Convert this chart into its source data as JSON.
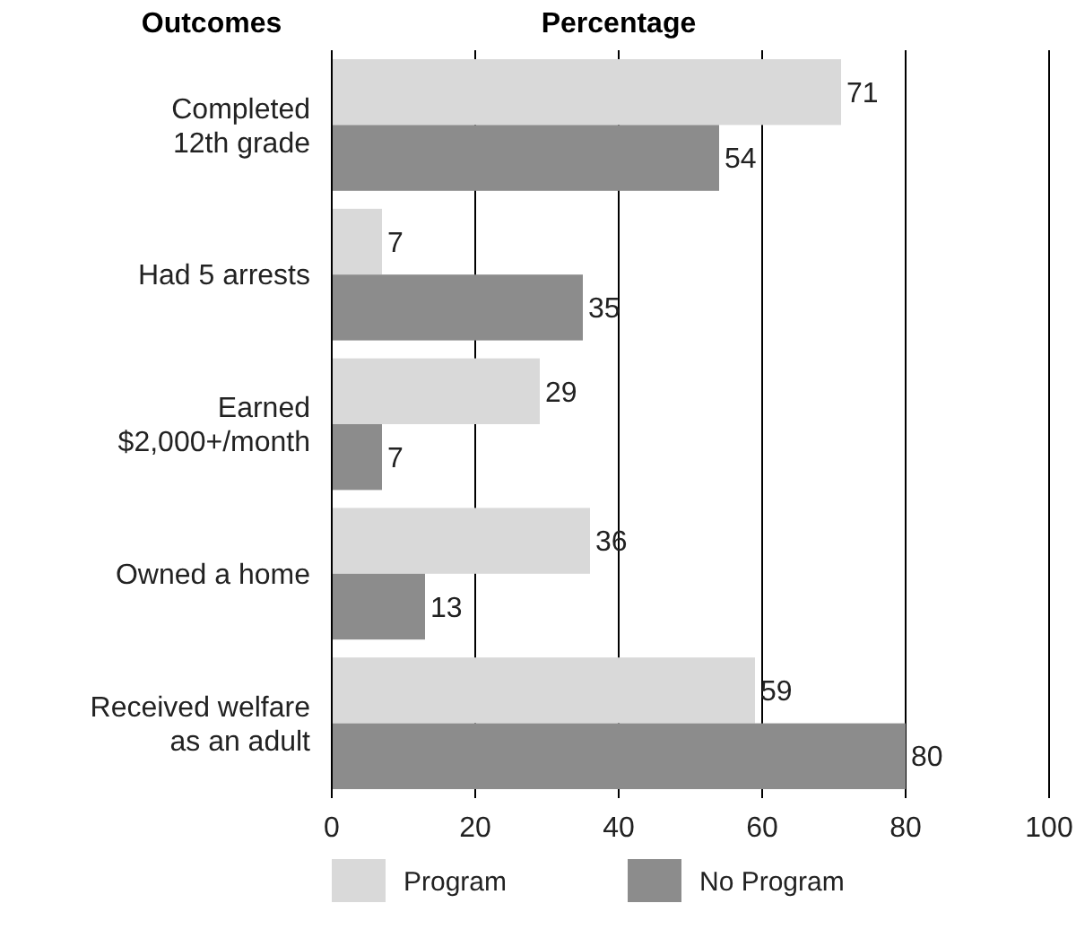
{
  "chart_data": {
    "type": "bar",
    "orientation": "horizontal",
    "ylabel": "Outcomes",
    "xlabel": "Percentage",
    "categories": [
      "Completed\n12th grade",
      "Had 5 arrests",
      "Earned\n$2,000+/month",
      "Owned a home",
      "Received welfare\nas an adult"
    ],
    "series": [
      {
        "name": "Program",
        "color": "#d9d9d9",
        "values": [
          71,
          7,
          29,
          36,
          59
        ]
      },
      {
        "name": "No Program",
        "color": "#8c8c8c",
        "values": [
          54,
          35,
          7,
          13,
          80
        ]
      }
    ],
    "xlim": [
      0,
      100
    ],
    "xticks": [
      0,
      20,
      40,
      60,
      80,
      100
    ],
    "grid": "x",
    "data_labels": true,
    "legend": "bottom"
  }
}
